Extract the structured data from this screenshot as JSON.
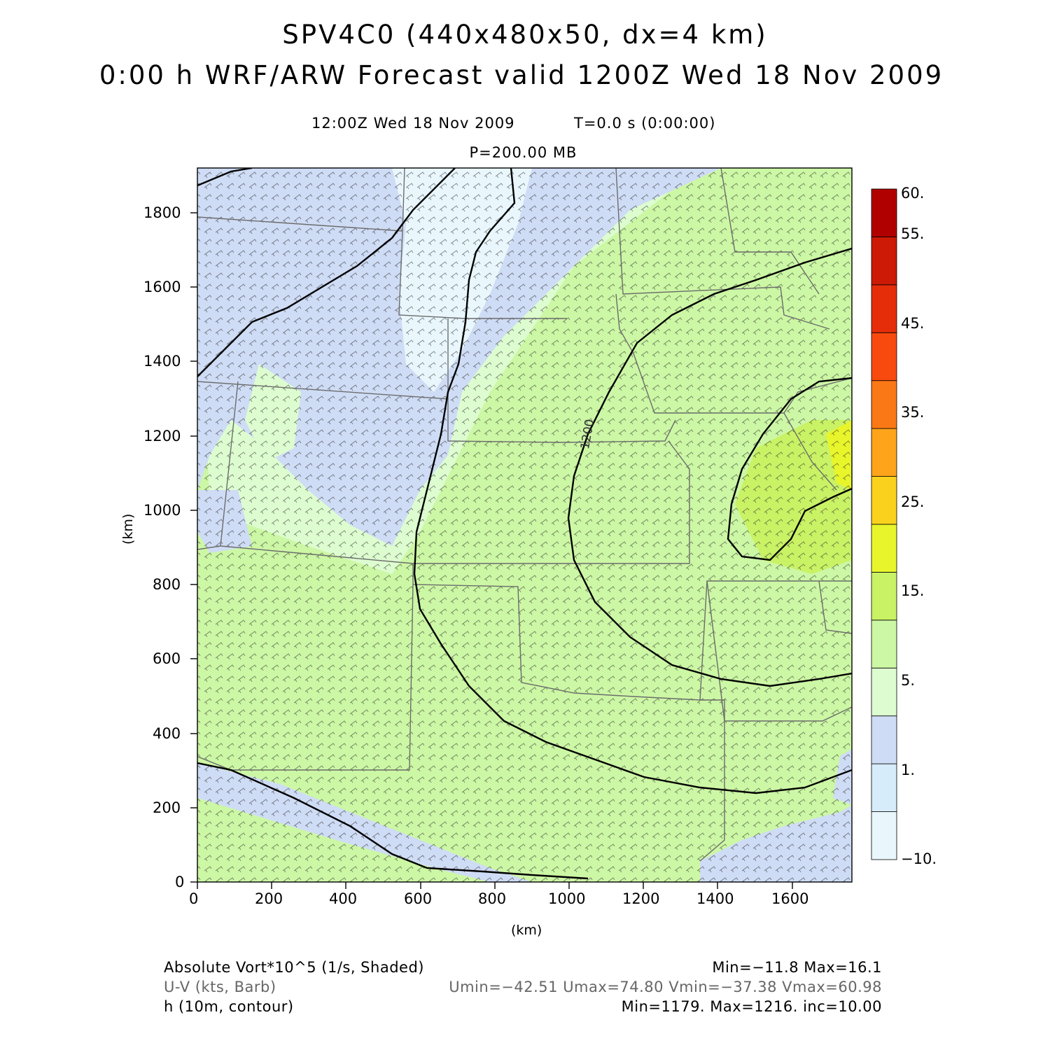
{
  "header": {
    "title_line1": "SPV4C0 (440x480x50, dx=4 km)",
    "title_line2": "0:00 h WRF/ARW Forecast valid 1200Z Wed 18 Nov 2009",
    "time_label": "12:00Z Wed 18 Nov 2009",
    "model_time": "T=0.0 s (0:00:00)",
    "level": "P=200.00 MB"
  },
  "map": {
    "x_axis_label": "(km)",
    "y_axis_label": "(km)",
    "x_range_km": [
      0,
      1760
    ],
    "y_range_km": [
      0,
      1920
    ],
    "x_ticks": [
      "0",
      "200",
      "400",
      "600",
      "800",
      "1000",
      "1200",
      "1400",
      "1600"
    ],
    "y_ticks": [
      "0",
      "200",
      "400",
      "600",
      "800",
      "1000",
      "1200",
      "1400",
      "1600",
      "1800"
    ],
    "contour_label": "1200"
  },
  "colorbar": {
    "labels": [
      "60.",
      "55.",
      "45.",
      "35.",
      "25.",
      "15.",
      "5.",
      "1.",
      "−10."
    ],
    "colors": [
      "#e9f7fd",
      "#d6ecfa",
      "#cfdcf5",
      "#ddfdd0",
      "#ccf7a5",
      "#c9f265",
      "#e8f52b",
      "#fad21d",
      "#fda41a",
      "#fb7816",
      "#f84a0f",
      "#e52d0a",
      "#cc1a06",
      "#b00000"
    ]
  },
  "footer": {
    "field1_name": "Absolute Vort*10^5 (1/s, Shaded)",
    "field1_stats": "Min=−11.8 Max=16.1",
    "field2_name": "U-V (kts, Barb)",
    "field2_stats": "Umin=−42.51 Umax=74.80 Vmin=−37.38 Vmax=60.98",
    "field3_name": "h (10m, contour)",
    "field3_stats": "Min=1179. Max=1216. inc=10.00"
  }
}
